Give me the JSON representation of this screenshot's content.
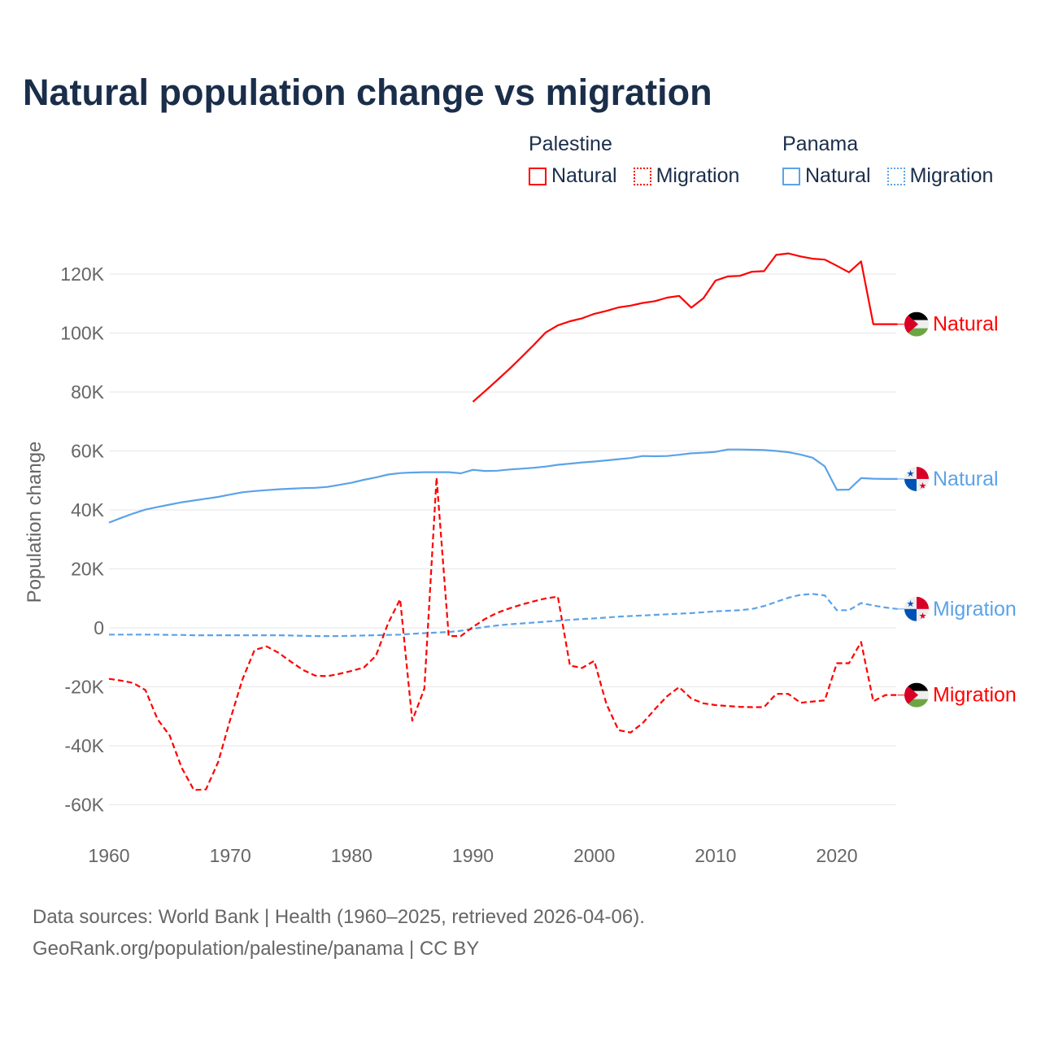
{
  "title": "Natural population change vs migration",
  "legend": {
    "groups": [
      {
        "name": "Palestine",
        "color": "#ff0000",
        "items": [
          "Natural",
          "Migration"
        ]
      },
      {
        "name": "Panama",
        "color": "#5ba3e8",
        "items": [
          "Natural",
          "Migration"
        ]
      }
    ]
  },
  "footer": {
    "line1": "Data sources: World Bank | Health (1960–2025, retrieved 2026-04-06).",
    "line2": "GeoRank.org/population/palestine/panama | CC BY"
  },
  "chart_data": {
    "type": "line",
    "title": "Natural population change vs migration",
    "xlabel": "",
    "ylabel": "Population change",
    "xlim": [
      1960,
      2025
    ],
    "ylim": [
      -70000,
      130000
    ],
    "x_ticks": [
      1960,
      1970,
      1980,
      1990,
      2000,
      2010,
      2020
    ],
    "x_tick_labels": [
      "1960",
      "1970",
      "1980",
      "1990",
      "2000",
      "2010",
      "2020"
    ],
    "y_ticks": [
      -60000,
      -40000,
      -20000,
      0,
      20000,
      40000,
      60000,
      80000,
      100000,
      120000
    ],
    "y_tick_labels": [
      "-60K",
      "-40K",
      "-20K",
      "0",
      "20K",
      "40K",
      "60K",
      "80K",
      "100K",
      "120K"
    ],
    "grid": true,
    "legend_position": "top-right",
    "series": [
      {
        "name": "Palestine Natural",
        "country": "Palestine",
        "label": "Natural",
        "color": "#ff0000",
        "dash": "solid",
        "start": 1990,
        "values": [
          76.7,
          80.3,
          84.0,
          87.8,
          91.8,
          95.9,
          100.2,
          102.6,
          104.0,
          105.0,
          106.5,
          107.5,
          108.7,
          109.3,
          110.2,
          110.8,
          112.0,
          112.6,
          108.6,
          111.8,
          117.8,
          119.2,
          119.4,
          120.8,
          121.0,
          126.5,
          127.0,
          126.0,
          125.2,
          124.9,
          122.8,
          120.6,
          124.3,
          103.0,
          103.0,
          103.0
        ]
      },
      {
        "name": "Panama Natural",
        "country": "Panama",
        "label": "Natural",
        "color": "#5ba3e8",
        "dash": "solid",
        "start": 1960,
        "values": [
          35.7,
          37.3,
          38.8,
          40.1,
          41.0,
          41.8,
          42.6,
          43.2,
          43.8,
          44.4,
          45.2,
          46.0,
          46.4,
          46.7,
          47.0,
          47.2,
          47.4,
          47.5,
          47.8,
          48.5,
          49.2,
          50.2,
          51.0,
          52.0,
          52.5,
          52.7,
          52.8,
          52.8,
          52.8,
          52.4,
          53.6,
          53.2,
          53.3,
          53.7,
          54.0,
          54.3,
          54.7,
          55.3,
          55.7,
          56.1,
          56.4,
          56.8,
          57.2,
          57.6,
          58.3,
          58.2,
          58.3,
          58.7,
          59.2,
          59.4,
          59.7,
          60.5,
          60.5,
          60.4,
          60.3,
          60.0,
          59.6,
          58.8,
          57.7,
          54.8,
          46.8,
          46.9,
          50.8,
          50.6,
          50.5,
          50.5
        ]
      },
      {
        "name": "Panama Migration",
        "country": "Panama",
        "label": "Migration",
        "color": "#5ba3e8",
        "dash": "dashed",
        "start": 1960,
        "values": [
          -2.3,
          -2.3,
          -2.3,
          -2.3,
          -2.3,
          -2.4,
          -2.4,
          -2.5,
          -2.5,
          -2.5,
          -2.5,
          -2.5,
          -2.5,
          -2.5,
          -2.5,
          -2.6,
          -2.7,
          -2.8,
          -2.8,
          -2.8,
          -2.7,
          -2.6,
          -2.5,
          -2.4,
          -2.3,
          -2.0,
          -1.8,
          -1.6,
          -1.4,
          -1.0,
          -0.3,
          0.3,
          0.8,
          1.2,
          1.5,
          1.8,
          2.1,
          2.4,
          2.7,
          3.0,
          3.2,
          3.5,
          3.8,
          4.0,
          4.2,
          4.4,
          4.6,
          4.8,
          5.0,
          5.3,
          5.6,
          5.8,
          6.0,
          6.4,
          7.4,
          8.8,
          10.2,
          11.2,
          11.5,
          11.0,
          6.0,
          6.0,
          8.4,
          7.6,
          6.9,
          6.4
        ]
      },
      {
        "name": "Palestine Migration",
        "country": "Palestine",
        "label": "Migration",
        "color": "#ff0000",
        "dash": "dashed",
        "start": 1960,
        "values": [
          -17.3,
          -17.9,
          -18.7,
          -21.1,
          -31.0,
          -36.5,
          -47.5,
          -55.0,
          -54.8,
          -45.5,
          -31.0,
          -17.5,
          -7.5,
          -6.3,
          -8.5,
          -11.5,
          -14.3,
          -16.2,
          -16.4,
          -15.6,
          -14.6,
          -13.5,
          -9.5,
          1.5,
          9.7,
          -31.5,
          -20.6,
          51.0,
          -2.8,
          -2.8,
          0.3,
          3.0,
          5.1,
          6.6,
          7.9,
          9.0,
          10.0,
          10.6,
          -12.8,
          -13.6,
          -11.2,
          -25.8,
          -34.7,
          -35.5,
          -32.3,
          -27.6,
          -23.2,
          -20.1,
          -24.0,
          -25.6,
          -26.2,
          -26.5,
          -26.8,
          -26.9,
          -26.9,
          -22.4,
          -22.4,
          -25.4,
          -25.0,
          -24.6,
          -12.0,
          -12.0,
          -4.8,
          -24.9,
          -22.8,
          -22.8
        ]
      }
    ],
    "value_unit": "thousands"
  }
}
